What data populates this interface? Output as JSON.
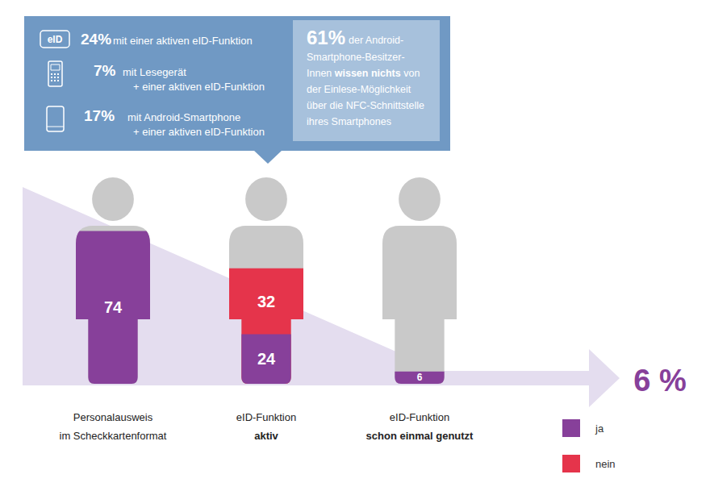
{
  "chart_data": {
    "type": "pictorialBar",
    "categories": [
      "Personalausweis\nim Scheckkartenformat",
      "eID-Funktion\naktiv",
      "eID-Funktion\nschon einmal genutzt"
    ],
    "series": [
      {
        "name": "ja",
        "color": "#87409a",
        "values": [
          74,
          24,
          6
        ]
      },
      {
        "name": "nein",
        "color": "#e5344b",
        "values": [
          null,
          32,
          null
        ]
      }
    ],
    "ylim": [
      0,
      100
    ],
    "stacked": true,
    "data_labels": true,
    "tick_labels": "x",
    "legend": "bottom-right",
    "info_box": {
      "icon_label": "eID",
      "stats": [
        {
          "figure": "24%",
          "lines": [
            "mit einer aktiven eID-Funktion"
          ]
        },
        {
          "figure": "7%",
          "lines": [
            "mit Lesegerät",
            "+ einer aktiven eID-Funktion"
          ]
        },
        {
          "figure": "17%",
          "lines": [
            "mit Android-Smartphone",
            "+ einer aktiven eID-Funktion"
          ]
        }
      ],
      "callout": {
        "figure": "61%",
        "lines": [
          "der Android-",
          "Smartphone-Besitzer-",
          "Innen wissen nichts von",
          "der Einlese-Möglichkeit",
          "über die NFC-Schnittstelle",
          "ihres Smartphones"
        ],
        "emphasis": "wissen nichts"
      }
    },
    "result": "6 %"
  }
}
